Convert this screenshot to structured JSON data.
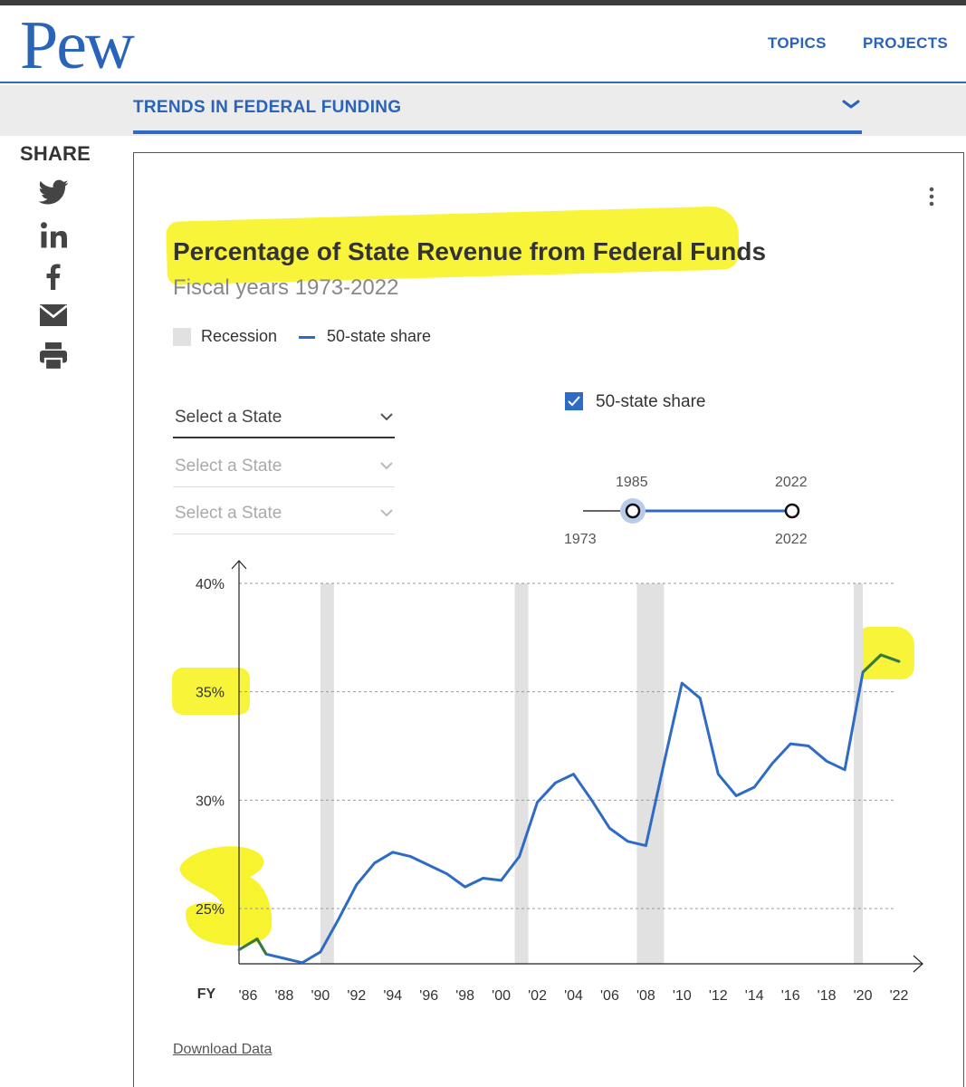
{
  "header": {
    "logo": "Pew",
    "nav": [
      "TOPICS",
      "PROJECTS"
    ]
  },
  "subnav": {
    "title": "TRENDS IN FEDERAL FUNDING"
  },
  "share": {
    "label": "SHARE",
    "icons": [
      "twitter-icon",
      "linkedin-icon",
      "facebook-icon",
      "email-icon",
      "print-icon"
    ]
  },
  "legend": {
    "recession": "Recession",
    "share": "50-state share"
  },
  "selects": [
    {
      "placeholder": "Select a State"
    },
    {
      "placeholder": "Select a State"
    },
    {
      "placeholder": "Select a State"
    }
  ],
  "checkbox": {
    "label": "50-state share",
    "checked": true
  },
  "range_slider": {
    "selected_start": "1985",
    "selected_end": "2022",
    "min": "1973",
    "max": "2022"
  },
  "download_label": "Download Data",
  "colors": {
    "brand": "#2a63b7",
    "line": "#2e6bc4",
    "line_highlighted": "#3a7a3a",
    "recession": "#e1e1e1",
    "highlighter": "#f8f32f"
  },
  "chart_data": {
    "type": "line",
    "title": "Percentage of State Revenue from Federal Funds",
    "subtitle": "Fiscal years 1973-2022",
    "xlabel": "FY",
    "ylabel": "",
    "xlim": [
      1985.5,
      2022.5
    ],
    "ylim": [
      22.5,
      41
    ],
    "grid": true,
    "legend_position": "top-left",
    "y_ticks": [
      {
        "value": 25,
        "label": "25%"
      },
      {
        "value": 30,
        "label": "30%"
      },
      {
        "value": 35,
        "label": "35%"
      },
      {
        "value": 40,
        "label": "40%"
      }
    ],
    "x_ticks": [
      {
        "value": 1986,
        "label": "'86"
      },
      {
        "value": 1988,
        "label": "'88"
      },
      {
        "value": 1990,
        "label": "'90"
      },
      {
        "value": 1992,
        "label": "'92"
      },
      {
        "value": 1994,
        "label": "'94"
      },
      {
        "value": 1996,
        "label": "'96"
      },
      {
        "value": 1998,
        "label": "'98"
      },
      {
        "value": 2000,
        "label": "'00"
      },
      {
        "value": 2002,
        "label": "'02"
      },
      {
        "value": 2004,
        "label": "'04"
      },
      {
        "value": 2006,
        "label": "'06"
      },
      {
        "value": 2008,
        "label": "'08"
      },
      {
        "value": 2010,
        "label": "'10"
      },
      {
        "value": 2012,
        "label": "'12"
      },
      {
        "value": 2014,
        "label": "'14"
      },
      {
        "value": 2016,
        "label": "'16"
      },
      {
        "value": 2018,
        "label": "'18"
      },
      {
        "value": 2020,
        "label": "'20"
      },
      {
        "value": 2022,
        "label": "'22"
      }
    ],
    "recessions": [
      [
        1990.0,
        1990.75
      ],
      [
        2000.75,
        2001.5
      ],
      [
        2007.5,
        2009.0
      ],
      [
        2019.5,
        2020.0
      ]
    ],
    "series": [
      {
        "name": "50-state share",
        "x": [
          1985.5,
          1986.5,
          1987,
          1988,
          1989,
          1990,
          1991,
          1992,
          1993,
          1994,
          1995,
          1996,
          1997,
          1998,
          1999,
          2000,
          2001,
          2002,
          2003,
          2004,
          2005,
          2006,
          2007,
          2008,
          2009,
          2010,
          2011,
          2012,
          2013,
          2014,
          2015,
          2016,
          2017,
          2018,
          2019,
          2020,
          2021,
          2022
        ],
        "y": [
          23.1,
          23.6,
          22.9,
          22.7,
          22.5,
          23.0,
          24.5,
          26.1,
          27.1,
          27.6,
          27.4,
          27.0,
          26.6,
          26.0,
          26.4,
          26.3,
          27.4,
          29.9,
          30.8,
          31.2,
          30.0,
          28.7,
          28.1,
          27.9,
          31.7,
          35.4,
          34.7,
          31.2,
          30.2,
          30.6,
          31.7,
          32.6,
          32.5,
          31.8,
          31.4,
          35.9,
          36.7,
          36.4
        ]
      }
    ]
  }
}
